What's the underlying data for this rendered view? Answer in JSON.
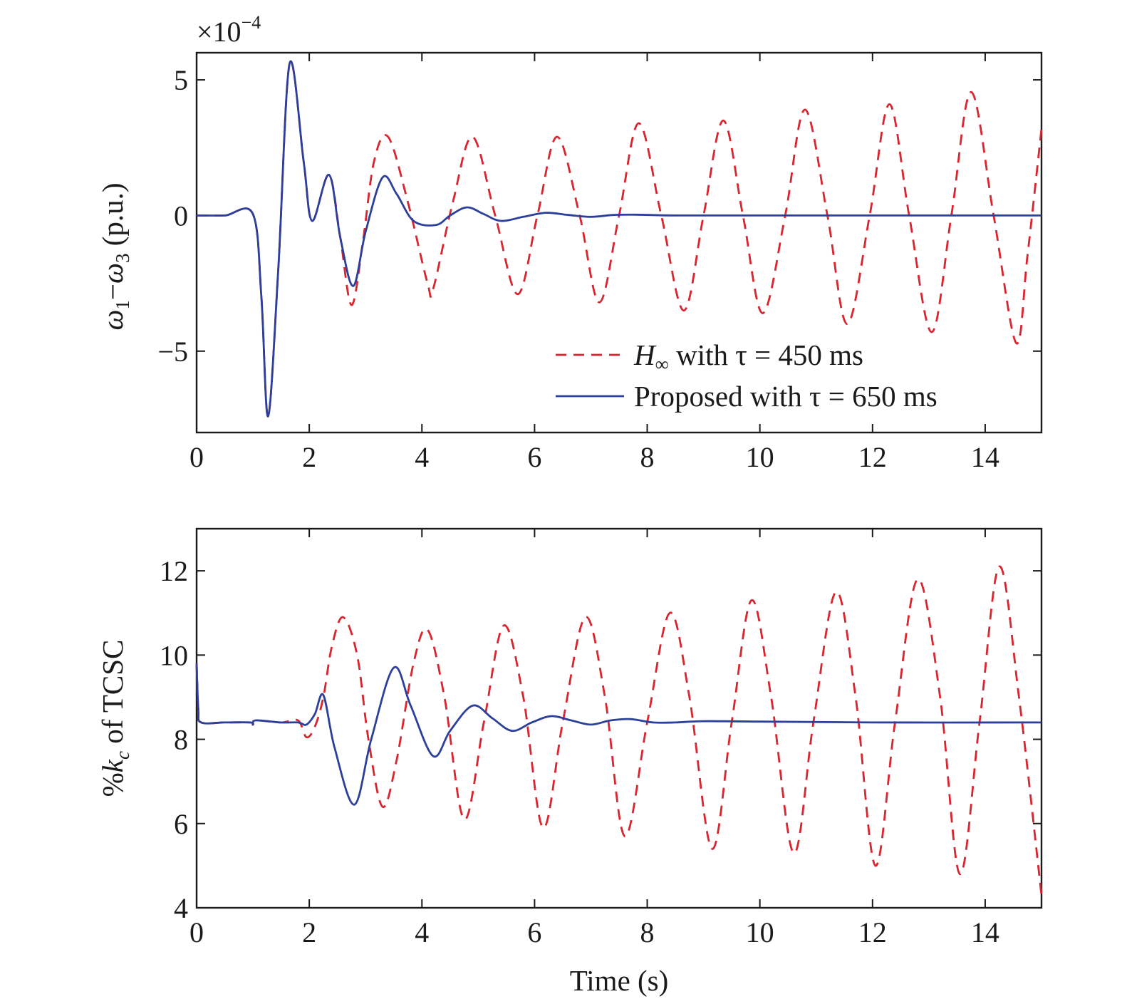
{
  "colors": {
    "series1": "#d9252f",
    "series2": "#2b3f9b",
    "axis": "#1a1a1a",
    "background": "#ffffff"
  },
  "chart_data": [
    {
      "type": "line",
      "ylabel": "ω1−ω3 (p.u.)",
      "ylabel_parts": {
        "a": "ω",
        "a_sub": "1",
        "dash": "−",
        "b": "ω",
        "b_sub": "3",
        "unit": " (p.u.)"
      },
      "multiplier": {
        "base": "×10",
        "exp": "−4"
      },
      "xlim": [
        0,
        15
      ],
      "ylim": [
        -8,
        6
      ],
      "xticks": [
        "0",
        "2",
        "4",
        "6",
        "8",
        "10",
        "12",
        "14"
      ],
      "yticks": [
        "5",
        "0",
        "−5"
      ],
      "legend": {
        "position": "bottom-right",
        "entries": [
          {
            "sym": "H",
            "sub": "∞",
            "text": " with τ = 450 ms"
          },
          {
            "text": "Proposed with τ = 650 ms"
          }
        ]
      },
      "series": [
        {
          "name": "H∞ with τ = 450 ms",
          "style": "dashed",
          "points": [
            [
              0,
              0
            ],
            [
              0.5,
              0
            ],
            [
              1.0,
              0.05
            ],
            [
              1.15,
              -3.0
            ],
            [
              1.27,
              -7.4
            ],
            [
              1.45,
              -2.0
            ],
            [
              1.65,
              5.6
            ],
            [
              1.9,
              2.0
            ],
            [
              2.05,
              -0.2
            ],
            [
              2.35,
              1.5
            ],
            [
              2.55,
              -0.8
            ],
            [
              2.75,
              -3.3
            ],
            [
              2.95,
              -1.0
            ],
            [
              3.15,
              2.0
            ],
            [
              3.4,
              2.9
            ],
            [
              3.75,
              0.5
            ],
            [
              4.1,
              -2.5
            ],
            [
              4.2,
              -2.7
            ],
            [
              4.55,
              0.5
            ],
            [
              4.9,
              2.9
            ],
            [
              5.3,
              0
            ],
            [
              5.7,
              -2.9
            ],
            [
              6.05,
              0
            ],
            [
              6.4,
              2.9
            ],
            [
              6.8,
              0
            ],
            [
              7.15,
              -3.2
            ],
            [
              7.5,
              0
            ],
            [
              7.85,
              3.4
            ],
            [
              8.25,
              0
            ],
            [
              8.65,
              -3.5
            ],
            [
              9.0,
              0
            ],
            [
              9.35,
              3.5
            ],
            [
              9.7,
              0
            ],
            [
              10.05,
              -3.6
            ],
            [
              10.45,
              0
            ],
            [
              10.8,
              3.9
            ],
            [
              11.2,
              0
            ],
            [
              11.55,
              -4.0
            ],
            [
              11.95,
              0
            ],
            [
              12.3,
              4.1
            ],
            [
              12.65,
              0
            ],
            [
              13.05,
              -4.3
            ],
            [
              13.4,
              0
            ],
            [
              13.75,
              4.55
            ],
            [
              14.15,
              0
            ],
            [
              14.55,
              -4.7
            ],
            [
              14.75,
              -1.5
            ],
            [
              15,
              3.2
            ]
          ]
        },
        {
          "name": "Proposed with τ = 650 ms",
          "style": "solid",
          "points": [
            [
              0,
              0
            ],
            [
              0.5,
              0
            ],
            [
              1.0,
              0.05
            ],
            [
              1.15,
              -3.0
            ],
            [
              1.27,
              -7.4
            ],
            [
              1.45,
              -2.0
            ],
            [
              1.65,
              5.6
            ],
            [
              1.9,
              2.0
            ],
            [
              2.05,
              -0.2
            ],
            [
              2.35,
              1.5
            ],
            [
              2.55,
              -0.8
            ],
            [
              2.78,
              -2.6
            ],
            [
              3.0,
              -0.6
            ],
            [
              3.3,
              1.4
            ],
            [
              3.55,
              0.8
            ],
            [
              3.85,
              -0.2
            ],
            [
              4.25,
              -0.35
            ],
            [
              4.5,
              0
            ],
            [
              4.8,
              0.3
            ],
            [
              5.1,
              0.05
            ],
            [
              5.4,
              -0.2
            ],
            [
              5.8,
              -0.05
            ],
            [
              6.2,
              0.1
            ],
            [
              6.6,
              0.02
            ],
            [
              7.0,
              -0.05
            ],
            [
              7.4,
              0.02
            ],
            [
              7.8,
              0.03
            ],
            [
              8.5,
              0
            ],
            [
              10,
              0
            ],
            [
              12,
              0
            ],
            [
              15,
              0
            ]
          ]
        }
      ]
    },
    {
      "type": "line",
      "ylabel": "%kc of TCSC",
      "ylabel_parts": {
        "pre": "%",
        "k": "k",
        "k_sub": "c",
        "post": " of TCSC"
      },
      "xlabel": "Time (s)",
      "xlim": [
        0,
        15
      ],
      "ylim": [
        4,
        13
      ],
      "xticks": [
        "0",
        "2",
        "4",
        "6",
        "8",
        "10",
        "12",
        "14"
      ],
      "yticks": [
        "4",
        "6",
        "8",
        "10",
        "12"
      ],
      "series": [
        {
          "name": "H∞ with τ = 450 ms",
          "style": "dashed",
          "points": [
            [
              0,
              9.8
            ],
            [
              0.03,
              8.7
            ],
            [
              0.08,
              8.4
            ],
            [
              0.5,
              8.4
            ],
            [
              0.95,
              8.4
            ],
            [
              1.0,
              8.35
            ],
            [
              1.05,
              8.45
            ],
            [
              1.5,
              8.4
            ],
            [
              1.8,
              8.45
            ],
            [
              1.95,
              8.05
            ],
            [
              2.1,
              8.3
            ],
            [
              2.25,
              9.0
            ],
            [
              2.4,
              10.2
            ],
            [
              2.6,
              10.9
            ],
            [
              2.85,
              10.0
            ],
            [
              3.05,
              8.0
            ],
            [
              3.3,
              6.4
            ],
            [
              3.55,
              7.5
            ],
            [
              3.85,
              9.8
            ],
            [
              4.1,
              10.6
            ],
            [
              4.4,
              9.0
            ],
            [
              4.75,
              6.1
            ],
            [
              5.1,
              8.4
            ],
            [
              5.45,
              10.7
            ],
            [
              5.8,
              9.0
            ],
            [
              6.15,
              5.9
            ],
            [
              6.5,
              8.4
            ],
            [
              6.9,
              10.9
            ],
            [
              7.25,
              9.0
            ],
            [
              7.6,
              5.7
            ],
            [
              8.0,
              8.4
            ],
            [
              8.4,
              11.0
            ],
            [
              8.75,
              9.0
            ],
            [
              9.15,
              5.4
            ],
            [
              9.5,
              8.4
            ],
            [
              9.85,
              11.3
            ],
            [
              10.2,
              9.0
            ],
            [
              10.6,
              5.3
            ],
            [
              10.95,
              8.4
            ],
            [
              11.35,
              11.5
            ],
            [
              11.7,
              9.0
            ],
            [
              12.05,
              5.0
            ],
            [
              12.4,
              8.4
            ],
            [
              12.8,
              11.8
            ],
            [
              13.2,
              9.0
            ],
            [
              13.55,
              4.8
            ],
            [
              13.9,
              8.4
            ],
            [
              14.25,
              12.1
            ],
            [
              14.6,
              9.0
            ],
            [
              15,
              4.3
            ]
          ]
        },
        {
          "name": "Proposed with τ = 650 ms",
          "style": "solid",
          "points": [
            [
              0,
              9.8
            ],
            [
              0.03,
              8.7
            ],
            [
              0.08,
              8.4
            ],
            [
              0.5,
              8.4
            ],
            [
              0.95,
              8.4
            ],
            [
              1.0,
              8.35
            ],
            [
              1.05,
              8.45
            ],
            [
              1.5,
              8.4
            ],
            [
              1.8,
              8.4
            ],
            [
              1.95,
              8.35
            ],
            [
              2.1,
              8.6
            ],
            [
              2.25,
              9.05
            ],
            [
              2.45,
              7.8
            ],
            [
              2.8,
              6.45
            ],
            [
              3.1,
              8.0
            ],
            [
              3.5,
              9.7
            ],
            [
              3.8,
              8.8
            ],
            [
              4.2,
              7.6
            ],
            [
              4.5,
              8.2
            ],
            [
              4.9,
              8.8
            ],
            [
              5.25,
              8.5
            ],
            [
              5.6,
              8.2
            ],
            [
              5.95,
              8.4
            ],
            [
              6.3,
              8.55
            ],
            [
              6.65,
              8.45
            ],
            [
              7.0,
              8.35
            ],
            [
              7.35,
              8.45
            ],
            [
              7.7,
              8.48
            ],
            [
              8.1,
              8.4
            ],
            [
              8.5,
              8.4
            ],
            [
              9.0,
              8.43
            ],
            [
              10,
              8.42
            ],
            [
              12,
              8.4
            ],
            [
              15,
              8.4
            ]
          ]
        }
      ]
    }
  ]
}
